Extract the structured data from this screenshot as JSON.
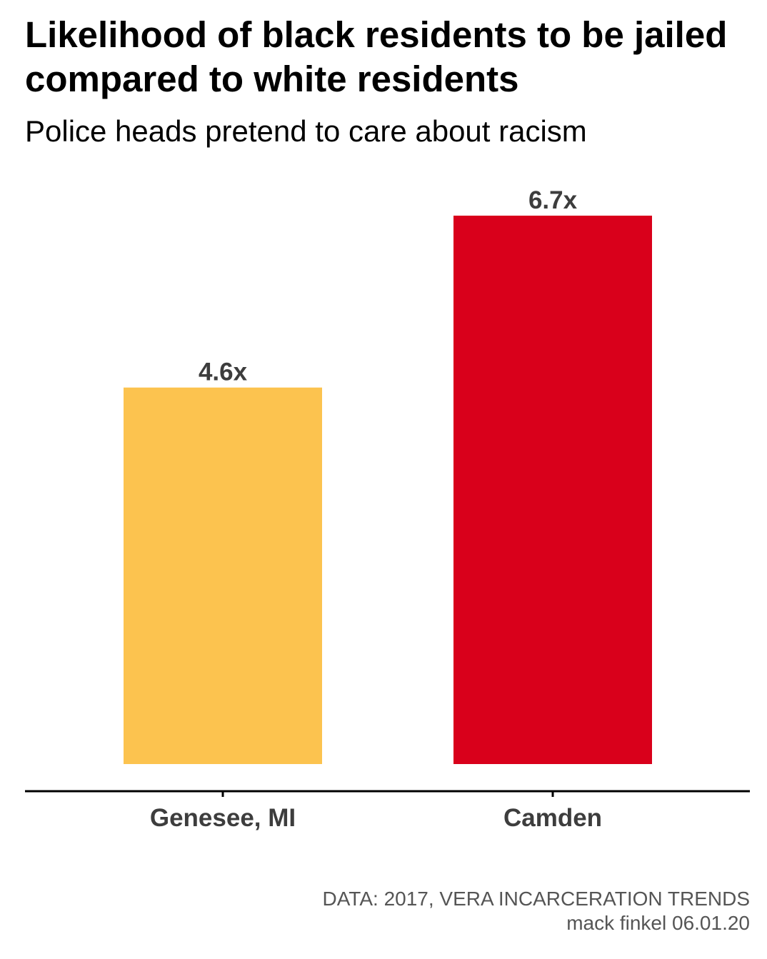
{
  "header": {
    "title": "Likelihood of black residents to be jailed compared to white residents",
    "subtitle": "Police heads pretend to care about racism"
  },
  "caption": {
    "source": "DATA: 2017, VERA INCARCERATION TRENDS",
    "author": "mack finkel 06.01.20"
  },
  "chart_data": {
    "type": "bar",
    "title": "Likelihood of black residents to be jailed compared to white residents",
    "subtitle": "Police heads pretend to care about racism",
    "categories": [
      "Genesee, MI",
      "Camden"
    ],
    "values": [
      4.6,
      6.7
    ],
    "data_labels": [
      "4.6x",
      "6.7x"
    ],
    "colors": [
      "#fcc34f",
      "#d9001b"
    ],
    "xlabel": "",
    "ylabel": "",
    "ylim": [
      0,
      6.7
    ],
    "grid": false,
    "legend": "none",
    "axis_color": "#000000",
    "label_color": "#3d3d3d"
  }
}
